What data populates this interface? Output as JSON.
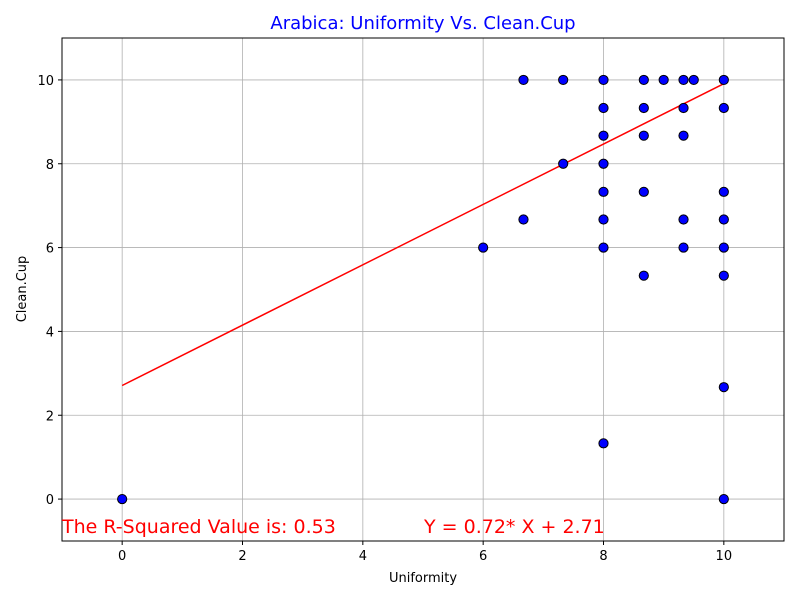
{
  "chart_data": {
    "type": "scatter",
    "title": "Arabica: Uniformity Vs. Clean.Cup",
    "title_color": "#0000ff",
    "xlabel": "Uniformity",
    "ylabel": "Clean.Cup",
    "xlim": [
      -1,
      11
    ],
    "ylim": [
      -1,
      11
    ],
    "x_ticks": [
      0,
      2,
      4,
      6,
      8,
      10
    ],
    "y_ticks": [
      0,
      2,
      4,
      6,
      8,
      10
    ],
    "grid": true,
    "marker_color": "#0000ff",
    "marker_edge_color": "#000000",
    "points": [
      {
        "x": 0,
        "y": 0
      },
      {
        "x": 6,
        "y": 6
      },
      {
        "x": 6.67,
        "y": 10
      },
      {
        "x": 6.67,
        "y": 6.67
      },
      {
        "x": 7.33,
        "y": 10
      },
      {
        "x": 7.33,
        "y": 8
      },
      {
        "x": 8,
        "y": 10
      },
      {
        "x": 8,
        "y": 9.33
      },
      {
        "x": 8,
        "y": 8.67
      },
      {
        "x": 8,
        "y": 8
      },
      {
        "x": 8,
        "y": 7.33
      },
      {
        "x": 8,
        "y": 6.67
      },
      {
        "x": 8,
        "y": 6
      },
      {
        "x": 8,
        "y": 1.33
      },
      {
        "x": 8.67,
        "y": 10
      },
      {
        "x": 8.67,
        "y": 9.33
      },
      {
        "x": 8.67,
        "y": 8.67
      },
      {
        "x": 8.67,
        "y": 7.33
      },
      {
        "x": 8.67,
        "y": 5.33
      },
      {
        "x": 9,
        "y": 10
      },
      {
        "x": 9.33,
        "y": 10
      },
      {
        "x": 9.33,
        "y": 9.33
      },
      {
        "x": 9.33,
        "y": 8.67
      },
      {
        "x": 9.33,
        "y": 6.67
      },
      {
        "x": 9.33,
        "y": 6
      },
      {
        "x": 9.5,
        "y": 10
      },
      {
        "x": 10,
        "y": 10
      },
      {
        "x": 10,
        "y": 9.33
      },
      {
        "x": 10,
        "y": 7.33
      },
      {
        "x": 10,
        "y": 6.67
      },
      {
        "x": 10,
        "y": 6
      },
      {
        "x": 10,
        "y": 5.33
      },
      {
        "x": 10,
        "y": 2.67
      },
      {
        "x": 10,
        "y": 0
      }
    ],
    "regression_line": {
      "slope": 0.72,
      "intercept": 2.71,
      "x_range": [
        0,
        10
      ],
      "color": "#ff0000"
    },
    "annotations": {
      "r_squared": "The R-Squared Value is: 0.53",
      "equation": "Y = 0.72* X + 2.71",
      "color": "#ff0000"
    }
  }
}
